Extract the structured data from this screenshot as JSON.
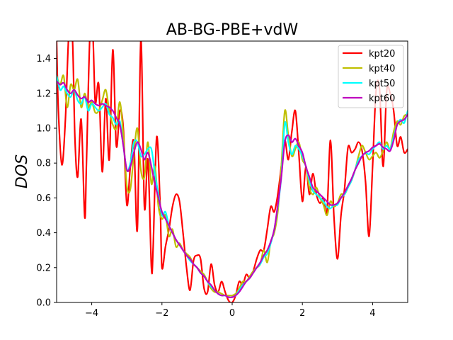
{
  "chart_data": {
    "type": "line",
    "title": "AB-BG-PBE+vdW",
    "xlabel": "",
    "ylabel": "DOS",
    "xlim": [
      -5,
      5
    ],
    "ylim": [
      0.0,
      1.5
    ],
    "xticks": [
      -4,
      -2,
      0,
      2,
      4
    ],
    "xtick_labels": [
      "−4",
      "−2",
      "0",
      "2",
      "4"
    ],
    "yticks": [
      0.0,
      0.2,
      0.4,
      0.6,
      0.8,
      1.0,
      1.2,
      1.4
    ],
    "ytick_labels": [
      "0.0",
      "0.2",
      "0.4",
      "0.6",
      "0.8",
      "1.0",
      "1.2",
      "1.4"
    ],
    "grid": false,
    "legend_position": "top-right",
    "series": [
      {
        "name": "kpt20",
        "color": "#ff0000",
        "x": [
          -5.0,
          -4.95,
          -4.85,
          -4.75,
          -4.65,
          -4.55,
          -4.48,
          -4.4,
          -4.3,
          -4.2,
          -4.15,
          -4.05,
          -3.97,
          -3.9,
          -3.8,
          -3.7,
          -3.6,
          -3.5,
          -3.4,
          -3.3,
          -3.2,
          -3.1,
          -3.0,
          -2.9,
          -2.8,
          -2.7,
          -2.6,
          -2.5,
          -2.4,
          -2.3,
          -2.25,
          -2.15,
          -2.05,
          -2.0,
          -1.9,
          -1.8,
          -1.7,
          -1.6,
          -1.5,
          -1.4,
          -1.3,
          -1.2,
          -1.1,
          -1.0,
          -0.9,
          -0.8,
          -0.7,
          -0.6,
          -0.5,
          -0.4,
          -0.3,
          -0.2,
          -0.1,
          0.0,
          0.1,
          0.2,
          0.3,
          0.4,
          0.5,
          0.6,
          0.7,
          0.8,
          0.9,
          1.0,
          1.1,
          1.2,
          1.3,
          1.4,
          1.5,
          1.6,
          1.7,
          1.8,
          1.9,
          2.0,
          2.1,
          2.2,
          2.3,
          2.4,
          2.5,
          2.6,
          2.7,
          2.8,
          2.9,
          3.0,
          3.1,
          3.2,
          3.3,
          3.4,
          3.5,
          3.6,
          3.7,
          3.8,
          3.9,
          4.0,
          4.1,
          4.2,
          4.3,
          4.4,
          4.5,
          4.6,
          4.7,
          4.8,
          4.9,
          5.0
        ],
        "y": [
          1.5,
          1.1,
          0.79,
          1.05,
          1.55,
          1.52,
          0.95,
          0.72,
          1.05,
          0.49,
          0.8,
          1.55,
          1.55,
          1.15,
          1.25,
          0.75,
          1.17,
          0.82,
          1.45,
          0.9,
          1.1,
          1.0,
          0.56,
          0.78,
          0.92,
          0.42,
          1.51,
          0.55,
          0.82,
          0.2,
          0.32,
          0.95,
          0.55,
          0.2,
          0.32,
          0.42,
          0.55,
          0.62,
          0.58,
          0.4,
          0.2,
          0.07,
          0.24,
          0.27,
          0.25,
          0.08,
          0.06,
          0.22,
          0.1,
          0.06,
          0.12,
          0.06,
          0.01,
          0.0,
          0.04,
          0.12,
          0.1,
          0.16,
          0.14,
          0.18,
          0.25,
          0.3,
          0.3,
          0.42,
          0.55,
          0.52,
          0.62,
          0.78,
          0.93,
          0.82,
          0.98,
          1.1,
          0.85,
          0.58,
          0.78,
          0.62,
          0.74,
          0.62,
          0.57,
          0.6,
          0.52,
          0.93,
          0.49,
          0.25,
          0.5,
          0.65,
          0.89,
          0.86,
          0.88,
          0.92,
          0.87,
          0.69,
          0.38,
          0.78,
          1.22,
          1.22,
          0.78,
          1.21,
          1.2,
          1.1,
          0.9,
          0.95,
          0.86,
          0.88
        ],
        "x_note": ""
      },
      {
        "name": "kpt40",
        "color": "#bfbf00",
        "x": [
          -5.0,
          -4.9,
          -4.8,
          -4.7,
          -4.6,
          -4.5,
          -4.4,
          -4.3,
          -4.2,
          -4.1,
          -4.0,
          -3.9,
          -3.8,
          -3.7,
          -3.6,
          -3.5,
          -3.4,
          -3.3,
          -3.2,
          -3.1,
          -3.0,
          -2.9,
          -2.8,
          -2.7,
          -2.6,
          -2.5,
          -2.4,
          -2.3,
          -2.2,
          -2.1,
          -2.0,
          -1.9,
          -1.8,
          -1.7,
          -1.6,
          -1.5,
          -1.4,
          -1.3,
          -1.2,
          -1.1,
          -1.0,
          -0.9,
          -0.8,
          -0.7,
          -0.6,
          -0.5,
          -0.4,
          -0.3,
          -0.2,
          -0.1,
          0.0,
          0.1,
          0.2,
          0.3,
          0.4,
          0.5,
          0.6,
          0.7,
          0.8,
          0.9,
          1.0,
          1.1,
          1.2,
          1.3,
          1.4,
          1.5,
          1.6,
          1.7,
          1.8,
          1.9,
          2.0,
          2.1,
          2.2,
          2.3,
          2.4,
          2.5,
          2.6,
          2.7,
          2.8,
          2.9,
          3.0,
          3.1,
          3.2,
          3.3,
          3.4,
          3.5,
          3.6,
          3.7,
          3.8,
          3.9,
          4.0,
          4.1,
          4.2,
          4.3,
          4.4,
          4.5,
          4.6,
          4.7,
          4.8,
          4.9,
          5.0
        ],
        "y": [
          1.3,
          1.25,
          1.3,
          1.12,
          1.25,
          1.22,
          1.28,
          1.12,
          1.2,
          1.12,
          1.15,
          1.09,
          1.1,
          1.16,
          1.22,
          1.1,
          1.02,
          1.0,
          1.15,
          0.96,
          0.67,
          0.65,
          0.85,
          1.0,
          0.76,
          0.72,
          0.92,
          0.68,
          0.78,
          0.55,
          0.48,
          0.5,
          0.38,
          0.42,
          0.32,
          0.34,
          0.3,
          0.28,
          0.26,
          0.22,
          0.2,
          0.18,
          0.16,
          0.12,
          0.08,
          0.06,
          0.06,
          0.05,
          0.04,
          0.04,
          0.04,
          0.05,
          0.08,
          0.12,
          0.12,
          0.15,
          0.18,
          0.2,
          0.22,
          0.3,
          0.23,
          0.35,
          0.4,
          0.52,
          0.78,
          1.1,
          0.96,
          0.84,
          0.88,
          0.92,
          0.82,
          0.78,
          0.66,
          0.62,
          0.66,
          0.6,
          0.56,
          0.5,
          0.58,
          0.55,
          0.57,
          0.62,
          0.62,
          0.66,
          0.7,
          0.76,
          0.84,
          0.9,
          0.86,
          0.82,
          0.84,
          0.86,
          0.83,
          0.87,
          0.92,
          0.88,
          0.98,
          1.04,
          1.02,
          1.07,
          1.08
        ],
        "x_note": ""
      },
      {
        "name": "kpt50",
        "color": "#00ffff",
        "x": [
          -5.0,
          -4.9,
          -4.8,
          -4.7,
          -4.6,
          -4.5,
          -4.4,
          -4.3,
          -4.2,
          -4.1,
          -4.0,
          -3.9,
          -3.8,
          -3.7,
          -3.6,
          -3.5,
          -3.4,
          -3.3,
          -3.2,
          -3.1,
          -3.0,
          -2.9,
          -2.8,
          -2.7,
          -2.6,
          -2.5,
          -2.4,
          -2.3,
          -2.2,
          -2.1,
          -2.0,
          -1.9,
          -1.8,
          -1.7,
          -1.6,
          -1.5,
          -1.4,
          -1.3,
          -1.2,
          -1.1,
          -1.0,
          -0.9,
          -0.8,
          -0.7,
          -0.6,
          -0.5,
          -0.4,
          -0.3,
          -0.2,
          -0.1,
          0.0,
          0.1,
          0.2,
          0.3,
          0.4,
          0.5,
          0.6,
          0.7,
          0.8,
          0.9,
          1.0,
          1.1,
          1.2,
          1.3,
          1.4,
          1.5,
          1.6,
          1.7,
          1.8,
          1.9,
          2.0,
          2.1,
          2.2,
          2.3,
          2.4,
          2.5,
          2.6,
          2.7,
          2.8,
          2.9,
          3.0,
          3.1,
          3.2,
          3.3,
          3.4,
          3.5,
          3.6,
          3.7,
          3.8,
          3.9,
          4.0,
          4.1,
          4.2,
          4.3,
          4.4,
          4.5,
          4.6,
          4.7,
          4.8,
          4.9,
          5.0
        ],
        "y": [
          1.3,
          1.22,
          1.24,
          1.2,
          1.18,
          1.22,
          1.16,
          1.14,
          1.18,
          1.1,
          1.14,
          1.12,
          1.1,
          1.12,
          1.14,
          1.08,
          1.06,
          1.02,
          1.04,
          0.9,
          0.76,
          0.8,
          0.92,
          0.92,
          0.84,
          0.85,
          0.88,
          0.88,
          0.74,
          0.62,
          0.5,
          0.52,
          0.44,
          0.4,
          0.36,
          0.33,
          0.3,
          0.27,
          0.24,
          0.22,
          0.2,
          0.17,
          0.15,
          0.12,
          0.09,
          0.07,
          0.05,
          0.04,
          0.04,
          0.03,
          0.03,
          0.04,
          0.07,
          0.1,
          0.12,
          0.14,
          0.17,
          0.2,
          0.22,
          0.26,
          0.28,
          0.34,
          0.42,
          0.55,
          0.72,
          1.03,
          0.92,
          0.85,
          0.9,
          0.88,
          0.84,
          0.78,
          0.7,
          0.64,
          0.62,
          0.6,
          0.58,
          0.55,
          0.54,
          0.56,
          0.56,
          0.6,
          0.62,
          0.66,
          0.7,
          0.76,
          0.82,
          0.84,
          0.86,
          0.85,
          0.88,
          0.9,
          0.92,
          0.88,
          0.9,
          0.88,
          0.95,
          1.02,
          1.05,
          1.03,
          1.1
        ],
        "x_note": ""
      },
      {
        "name": "kpt60",
        "color": "#bf00bf",
        "x": [
          -5.0,
          -4.9,
          -4.8,
          -4.7,
          -4.6,
          -4.5,
          -4.4,
          -4.3,
          -4.2,
          -4.1,
          -4.0,
          -3.9,
          -3.8,
          -3.7,
          -3.6,
          -3.5,
          -3.4,
          -3.3,
          -3.2,
          -3.1,
          -3.0,
          -2.9,
          -2.8,
          -2.7,
          -2.6,
          -2.5,
          -2.4,
          -2.3,
          -2.2,
          -2.1,
          -2.0,
          -1.9,
          -1.8,
          -1.7,
          -1.6,
          -1.5,
          -1.4,
          -1.3,
          -1.2,
          -1.1,
          -1.0,
          -0.9,
          -0.8,
          -0.7,
          -0.6,
          -0.5,
          -0.4,
          -0.3,
          -0.2,
          -0.1,
          0.0,
          0.1,
          0.2,
          0.3,
          0.4,
          0.5,
          0.6,
          0.7,
          0.8,
          0.9,
          1.0,
          1.1,
          1.2,
          1.3,
          1.4,
          1.5,
          1.6,
          1.7,
          1.8,
          1.9,
          2.0,
          2.1,
          2.2,
          2.3,
          2.4,
          2.5,
          2.6,
          2.7,
          2.8,
          2.9,
          3.0,
          3.1,
          3.2,
          3.3,
          3.4,
          3.5,
          3.6,
          3.7,
          3.8,
          3.9,
          4.0,
          4.1,
          4.2,
          4.3,
          4.4,
          4.5,
          4.6,
          4.7,
          4.8,
          4.9,
          5.0
        ],
        "y": [
          1.27,
          1.25,
          1.26,
          1.22,
          1.2,
          1.22,
          1.19,
          1.17,
          1.18,
          1.15,
          1.16,
          1.14,
          1.13,
          1.14,
          1.13,
          1.12,
          1.1,
          1.06,
          1.02,
          0.9,
          0.76,
          0.78,
          0.86,
          0.92,
          0.88,
          0.82,
          0.86,
          0.78,
          0.68,
          0.6,
          0.52,
          0.48,
          0.44,
          0.4,
          0.36,
          0.33,
          0.3,
          0.27,
          0.25,
          0.22,
          0.2,
          0.17,
          0.15,
          0.12,
          0.1,
          0.07,
          0.05,
          0.04,
          0.04,
          0.03,
          0.03,
          0.04,
          0.06,
          0.09,
          0.12,
          0.14,
          0.17,
          0.2,
          0.23,
          0.27,
          0.3,
          0.35,
          0.42,
          0.56,
          0.72,
          0.92,
          0.96,
          0.92,
          0.94,
          0.9,
          0.86,
          0.78,
          0.72,
          0.66,
          0.64,
          0.62,
          0.6,
          0.58,
          0.56,
          0.56,
          0.57,
          0.6,
          0.63,
          0.67,
          0.71,
          0.76,
          0.8,
          0.84,
          0.86,
          0.87,
          0.89,
          0.9,
          0.91,
          0.89,
          0.88,
          0.87,
          0.93,
          1.02,
          1.04,
          1.05,
          1.08
        ],
        "x_note": ""
      }
    ]
  }
}
